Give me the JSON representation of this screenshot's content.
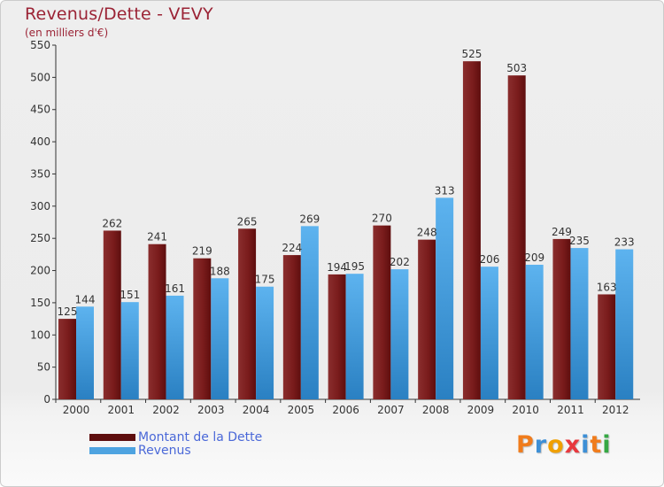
{
  "title": "Revenus/Dette - VEVY",
  "subtitle": "(en milliers d'€)",
  "logo": {
    "text": "Proxiti",
    "letter_colors": [
      "#f07c1c",
      "#3d8fd6",
      "#f0a000",
      "#e8383d",
      "#3d8fd6",
      "#f07c1c",
      "#35a843"
    ]
  },
  "colors": {
    "debt": "#7a1c1c",
    "debt_light": "#8a2e2e",
    "debt_dark": "#5e0e0e",
    "revenue": "#4ea3e0",
    "revenue_light": "#5db3ef",
    "revenue_dark": "#2a80c2"
  },
  "chart_data": {
    "type": "bar",
    "title": "Revenus/Dette - VEVY",
    "subtitle": "(en milliers d'€)",
    "categories": [
      "2000",
      "2001",
      "2002",
      "2003",
      "2004",
      "2005",
      "2006",
      "2007",
      "2008",
      "2009",
      "2010",
      "2011",
      "2012"
    ],
    "series": [
      {
        "name": "Montant de la Dette",
        "values": [
          125,
          262,
          241,
          219,
          265,
          224,
          194,
          270,
          248,
          525,
          503,
          249,
          163
        ]
      },
      {
        "name": "Revenus",
        "values": [
          144,
          151,
          161,
          188,
          175,
          269,
          195,
          202,
          313,
          206,
          209,
          235,
          233
        ]
      }
    ],
    "ylim": [
      0,
      550
    ],
    "yticks": [
      0,
      50,
      100,
      150,
      200,
      250,
      300,
      350,
      400,
      450,
      500,
      550
    ],
    "grid": false,
    "legend_position": "bottom-left"
  }
}
